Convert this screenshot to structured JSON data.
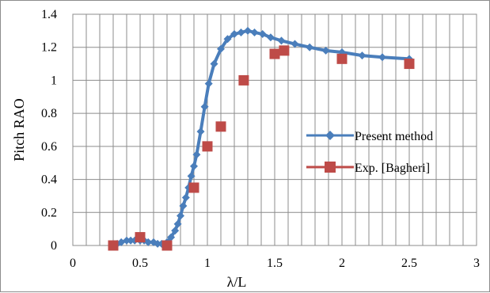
{
  "chart_data": {
    "type": "line",
    "xlabel": "λ/L",
    "ylabel": "Pitch RAO",
    "xlim": [
      0,
      3
    ],
    "ylim": [
      0,
      1.4
    ],
    "x_ticks": [
      0,
      0.5,
      1,
      1.5,
      2,
      2.5,
      3
    ],
    "y_ticks": [
      0,
      0.2,
      0.4,
      0.6,
      0.8,
      1,
      1.2,
      1.4
    ],
    "x_tick_labels": [
      "0",
      "0.5",
      "1",
      "1.5",
      "2",
      "2.5",
      "3"
    ],
    "y_tick_labels": [
      "0",
      "0.2",
      "0.4",
      "0.6",
      "0.8",
      "1",
      "1.2",
      "1.4"
    ],
    "grid": true,
    "legend_position": "right",
    "series": [
      {
        "name": "Present method",
        "color": "#4a7ebb",
        "marker": "diamond",
        "x": [
          0.3,
          0.33,
          0.36,
          0.4,
          0.43,
          0.46,
          0.5,
          0.53,
          0.56,
          0.6,
          0.63,
          0.66,
          0.7,
          0.73,
          0.76,
          0.78,
          0.8,
          0.82,
          0.84,
          0.86,
          0.88,
          0.9,
          0.92,
          0.95,
          0.98,
          1.01,
          1.05,
          1.1,
          1.15,
          1.2,
          1.25,
          1.3,
          1.35,
          1.41,
          1.47,
          1.55,
          1.65,
          1.76,
          1.88,
          2.0,
          2.15,
          2.3,
          2.5
        ],
        "y": [
          0.0,
          0.01,
          0.02,
          0.03,
          0.03,
          0.03,
          0.03,
          0.03,
          0.02,
          0.02,
          0.01,
          0.01,
          0.02,
          0.05,
          0.09,
          0.13,
          0.18,
          0.24,
          0.29,
          0.35,
          0.42,
          0.48,
          0.55,
          0.69,
          0.84,
          0.98,
          1.1,
          1.19,
          1.25,
          1.28,
          1.29,
          1.3,
          1.29,
          1.28,
          1.26,
          1.24,
          1.22,
          1.2,
          1.18,
          1.17,
          1.15,
          1.14,
          1.13
        ]
      },
      {
        "name": "Exp. [Bagheri]",
        "color": "#be4b48",
        "marker": "square",
        "x": [
          0.3,
          0.5,
          0.7,
          0.9,
          1.0,
          1.1,
          1.27,
          1.5,
          1.57,
          2.0,
          2.5
        ],
        "y": [
          0.0,
          0.05,
          0.0,
          0.35,
          0.6,
          0.72,
          1.0,
          1.16,
          1.18,
          1.13,
          1.1
        ]
      }
    ]
  }
}
